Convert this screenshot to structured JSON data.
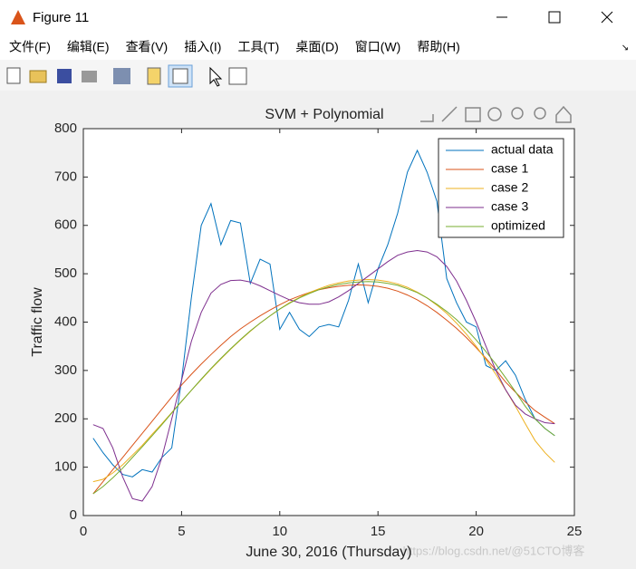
{
  "window": {
    "title": "Figure 11",
    "menu": [
      "文件(F)",
      "编辑(E)",
      "查看(V)",
      "插入(I)",
      "工具(T)",
      "桌面(D)",
      "窗口(W)",
      "帮助(H)"
    ]
  },
  "chart_data": {
    "type": "line",
    "title": "SVM + Polynomial",
    "x_label": "June 30, 2016 (Thursday)",
    "y_label": "Traffic flow",
    "xlim": [
      0,
      25
    ],
    "xticks": [
      0,
      5,
      10,
      15,
      20,
      25
    ],
    "ylim": [
      0,
      800
    ],
    "yticks": [
      0,
      100,
      200,
      300,
      400,
      500,
      600,
      700,
      800
    ],
    "legend": "upper right",
    "x": [
      0.5,
      1,
      1.5,
      2,
      2.5,
      3,
      3.5,
      4,
      4.5,
      5,
      5.5,
      6,
      6.5,
      7,
      7.5,
      8,
      8.5,
      9,
      9.5,
      10,
      10.5,
      11,
      11.5,
      12,
      12.5,
      13,
      13.5,
      14,
      14.5,
      15,
      15.5,
      16,
      16.5,
      17,
      17.5,
      18,
      18.5,
      19,
      19.5,
      20,
      20.5,
      21,
      21.5,
      22,
      22.5,
      23,
      23.5,
      24
    ],
    "series": [
      {
        "name": "actual data",
        "color": "#0072BD",
        "values": [
          160,
          130,
          105,
          85,
          80,
          95,
          90,
          120,
          140,
          280,
          450,
          600,
          645,
          560,
          610,
          605,
          480,
          530,
          520,
          385,
          420,
          385,
          370,
          390,
          395,
          390,
          445,
          520,
          440,
          510,
          560,
          625,
          710,
          755,
          710,
          650,
          490,
          440,
          400,
          390,
          310,
          300,
          320,
          290,
          240,
          200,
          180,
          165
        ]
      },
      {
        "name": "case 1",
        "color": "#D95319",
        "values": [
          45,
          70,
          95,
          120,
          145,
          170,
          195,
          220,
          245,
          270,
          292,
          313,
          333,
          352,
          370,
          386,
          400,
          413,
          425,
          436,
          446,
          454,
          461,
          467,
          471,
          474,
          476,
          477,
          476,
          474,
          470,
          464,
          456,
          446,
          434,
          420,
          404,
          387,
          368,
          347,
          325,
          301,
          276,
          255,
          235,
          217,
          203,
          190
        ]
      },
      {
        "name": "case 2",
        "color": "#EDB120",
        "values": [
          70,
          75,
          88,
          105,
          125,
          145,
          168,
          190,
          213,
          236,
          259,
          281,
          303,
          324,
          344,
          363,
          381,
          398,
          413,
          427,
          440,
          451,
          461,
          469,
          476,
          481,
          485,
          487,
          488,
          487,
          484,
          479,
          472,
          462,
          450,
          435,
          418,
          398,
          375,
          350,
          322,
          292,
          260,
          226,
          190,
          155,
          130,
          110
        ]
      },
      {
        "name": "case 3",
        "color": "#7E2F8E",
        "values": [
          188,
          180,
          140,
          80,
          35,
          30,
          60,
          120,
          200,
          280,
          360,
          420,
          460,
          478,
          486,
          487,
          483,
          475,
          465,
          455,
          446,
          440,
          437,
          437,
          442,
          452,
          465,
          480,
          495,
          510,
          525,
          538,
          545,
          548,
          545,
          535,
          515,
          485,
          445,
          400,
          350,
          300,
          260,
          228,
          210,
          200,
          192,
          190
        ]
      },
      {
        "name": "optimized",
        "color": "#77AC30",
        "values": [
          45,
          60,
          78,
          98,
          120,
          142,
          165,
          188,
          212,
          236,
          259,
          282,
          304,
          325,
          345,
          364,
          382,
          398,
          413,
          427,
          439,
          450,
          459,
          467,
          473,
          478,
          481,
          483,
          484,
          483,
          480,
          476,
          469,
          461,
          450,
          437,
          422,
          405,
          385,
          363,
          339,
          313,
          285,
          256,
          226,
          200,
          180,
          165
        ]
      }
    ]
  },
  "watermark": "https://blog.csdn.net/@51CTO博客"
}
